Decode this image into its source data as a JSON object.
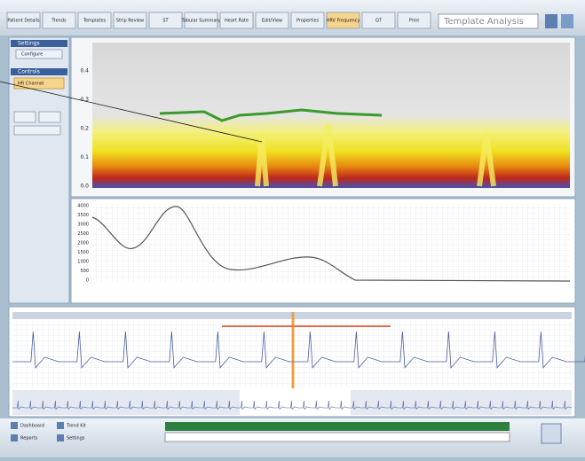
{
  "toolbar": {
    "buttons": [
      "Patient Details",
      "Trends",
      "Templates",
      "Strip Review",
      "ST",
      "Tabular Summary",
      "Heart Rate",
      "Edit/View",
      "Properties",
      "HRV Frequency",
      "QT",
      "Print"
    ],
    "template_select": "Template Analysis"
  },
  "left_panel": {
    "settings_title": "Settings",
    "settings_item": "Configure",
    "controls_title": "Controls",
    "controls_item": "HR Channel"
  },
  "spectrogram": {
    "yticks": [
      "0.4",
      "0.3",
      "0.2",
      "0.1",
      "0.0"
    ]
  },
  "spectrum": {
    "yticks": [
      "4000",
      "3500",
      "3000",
      "2500",
      "2000",
      "1500",
      "1000",
      "500",
      "0"
    ]
  },
  "bottom": {
    "buttons": [
      "Dashboard",
      "Reports",
      "Trend Kit",
      "Settings"
    ]
  }
}
